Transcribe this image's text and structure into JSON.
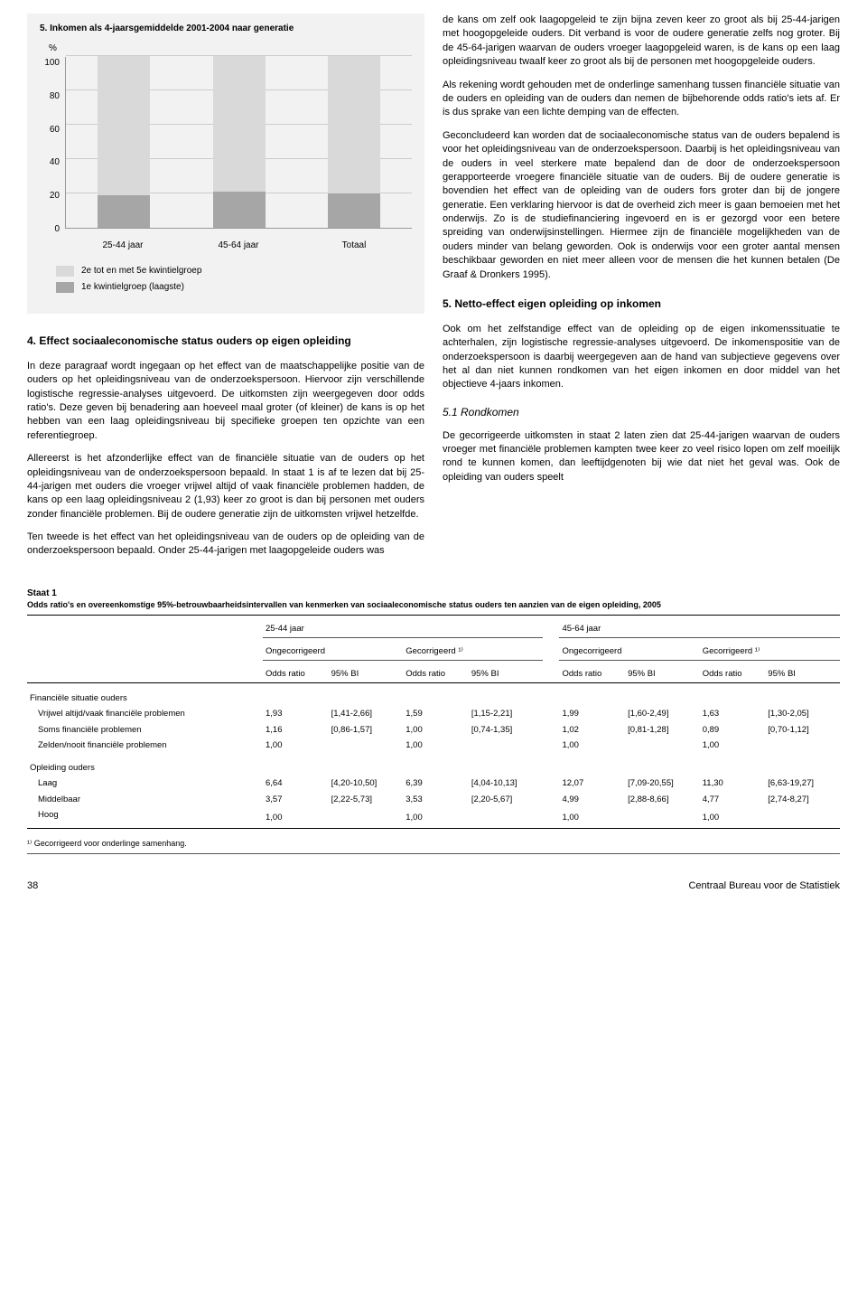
{
  "chart": {
    "title": "5. Inkomen als 4-jaarsgemiddelde 2001-2004 naar generatie",
    "y_unit": "%",
    "y_ticks": [
      "100",
      "80",
      "60",
      "40",
      "20",
      "0"
    ],
    "ylim": [
      0,
      100
    ],
    "categories": [
      "25-44 jaar",
      "45-64 jaar",
      "Totaal"
    ],
    "series_top_label": "2e tot en met 5e kwintielgroep",
    "series_bottom_label": "1e kwintielgroep (laagste)",
    "values_top": [
      81,
      79,
      80
    ],
    "values_bottom": [
      19,
      21,
      20
    ],
    "color_top": "#d9d9d9",
    "color_bottom": "#a6a6a6",
    "panel_bg": "#f2f2f2",
    "grid_color": "#cccccc"
  },
  "left_col": {
    "sect4_heading": "4. Effect sociaaleconomische status ouders op eigen opleiding",
    "p1": "In deze paragraaf wordt ingegaan op het effect van de maatschappelijke positie van de ouders op het opleidingsniveau van de onderzoekspersoon. Hiervoor zijn verschillende logistische regressie-analyses uitgevoerd. De uitkomsten zijn weergegeven door odds ratio's. Deze geven bij benadering aan hoeveel maal groter (of kleiner) de kans is op het hebben van een laag opleidingsniveau bij specifieke groepen ten opzichte van een referentiegroep.",
    "p2": "Allereerst is het afzonderlijke effect van de financiële situatie van de ouders op het opleidingsniveau van de onderzoekspersoon bepaald. In staat 1 is af te lezen dat bij 25-44-jarigen met ouders die vroeger vrijwel altijd of vaak financiële problemen hadden, de kans op een laag opleidingsniveau 2 (1,93) keer zo groot is dan bij personen met ouders zonder financiële problemen. Bij de oudere generatie zijn de uitkomsten vrijwel hetzelfde.",
    "p3": "Ten tweede is het effect van het opleidingsniveau van de ouders op de opleiding van de onderzoekspersoon bepaald. Onder 25-44-jarigen met laagopgeleide ouders was"
  },
  "right_col": {
    "p1": "de kans om zelf ook laagopgeleid te zijn bijna zeven keer zo groot als bij 25-44-jarigen met hoogopgeleide ouders. Dit verband is voor de oudere generatie zelfs nog groter. Bij de 45-64-jarigen waarvan de ouders vroeger laagopgeleid waren, is de kans op een laag opleidingsniveau twaalf keer zo groot als bij de personen met hoogopgeleide ouders.",
    "p2": "Als rekening wordt gehouden met de onderlinge samenhang tussen financiële situatie van de ouders en opleiding van de ouders dan nemen de bijbehorende odds ratio's iets af. Er is dus sprake van een lichte demping van de effecten.",
    "p3": "Geconcludeerd kan worden dat de sociaaleconomische status van de ouders bepalend is voor het opleidingsniveau van de onderzoekspersoon. Daarbij is het opleidingsniveau van de ouders in veel sterkere mate bepalend dan de door de onderzoekspersoon gerapporteerde vroegere financiële situatie van de ouders. Bij de oudere generatie is bovendien het effect van de opleiding van de ouders fors groter dan bij de jongere generatie. Een verklaring hiervoor is dat de overheid zich meer is gaan bemoeien met het onderwijs. Zo is de studiefinanciering ingevoerd en is er gezorgd voor een betere spreiding van onderwijsinstellingen. Hiermee zijn de financiële mogelijkheden van de ouders minder van belang geworden. Ook is onderwijs voor een groter aantal mensen beschikbaar geworden en niet meer alleen voor de mensen die het kunnen betalen (De Graaf & Dronkers 1995).",
    "sect5_heading": "5. Netto-effect eigen opleiding op inkomen",
    "p4": "Ook om het zelfstandige effect van de opleiding op de eigen inkomenssituatie te achterhalen, zijn logistische regressie-analyses uitgevoerd. De inkomenspositie van de onderzoekspersoon is daarbij weergegeven aan de hand van subjectieve gegevens over het al dan niet kunnen rondkomen van het eigen inkomen en door middel van het objectieve 4-jaars inkomen.",
    "sub51": "5.1   Rondkomen",
    "p5": "De gecorrigeerde uitkomsten in staat 2 laten zien dat 25-44-jarigen waarvan de ouders vroeger met financiële problemen kampten twee keer zo veel risico lopen om zelf moeilijk rond te kunnen komen, dan leeftijdgenoten bij wie dat niet het geval was. Ook de opleiding van ouders speelt"
  },
  "staat": {
    "title_line1": "Staat 1",
    "title_line2": "Odds ratio's en overeenkomstige 95%-betrouwbaarheidsintervallen van kenmerken van sociaaleconomische status ouders ten aanzien van de eigen opleiding, 2005",
    "col_age_a": "25-44 jaar",
    "col_age_b": "45-64 jaar",
    "col_ong": "Ongecorrigeerd",
    "col_gec": "Gecorrigeerd ¹⁾",
    "col_or": "Odds ratio",
    "col_bi": "95% BI",
    "group1": "Financiële situatie ouders",
    "g1r1": "Vrijwel altijd/vaak financiële problemen",
    "g1r2": "Soms financiële problemen",
    "g1r3": "Zelden/nooit financiële problemen",
    "group2": "Opleiding ouders",
    "g2r1": "Laag",
    "g2r2": "Middelbaar",
    "g2r3": "Hoog",
    "vals": {
      "g1r1": [
        "1,93",
        "[1,41-2,66]",
        "1,59",
        "[1,15-2,21]",
        "1,99",
        "[1,60-2,49]",
        "1,63",
        "[1,30-2,05]"
      ],
      "g1r2": [
        "1,16",
        "[0,86-1,57]",
        "1,00",
        "[0,74-1,35]",
        "1,02",
        "[0,81-1,28]",
        "0,89",
        "[0,70-1,12]"
      ],
      "g1r3": [
        "1,00",
        "",
        "1,00",
        "",
        "1,00",
        "",
        "1,00",
        ""
      ],
      "g2r1": [
        "6,64",
        "[4,20-10,50]",
        "6,39",
        "[4,04-10,13]",
        "12,07",
        "[7,09-20,55]",
        "11,30",
        "[6,63-19,27]"
      ],
      "g2r2": [
        "3,57",
        "[2,22-5,73]",
        "3,53",
        "[2,20-5,67]",
        "4,99",
        "[2,88-8,66]",
        "4,77",
        "[2,74-8,27]"
      ],
      "g2r3": [
        "1,00",
        "",
        "1,00",
        "",
        "1,00",
        "",
        "1,00",
        ""
      ]
    },
    "footnote": "¹⁾ Gecorrigeerd voor onderlinge samenhang."
  },
  "footer": {
    "page": "38",
    "pub": "Centraal Bureau voor de Statistiek"
  }
}
